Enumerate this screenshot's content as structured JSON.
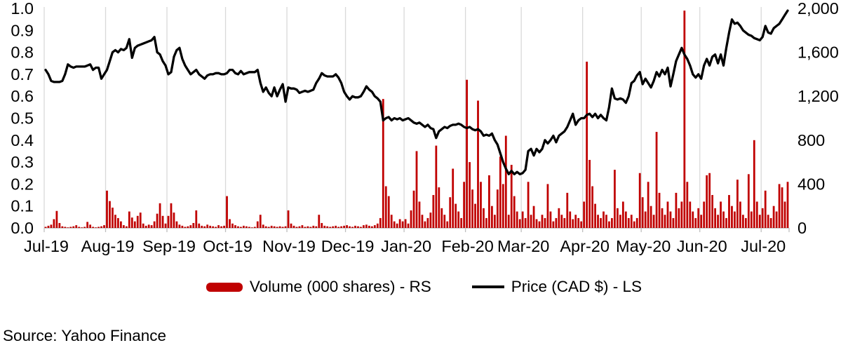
{
  "source_note": "Source: Yahoo Finance",
  "colors": {
    "bar": "#c00000",
    "line": "#000000",
    "grid": "#d9d9d9",
    "axis": "#bfbfbf",
    "text": "#000000",
    "background": "#ffffff"
  },
  "legend": {
    "volume_label": "Volume (000 shares) - RS",
    "price_label": "Price (CAD $) - LS"
  },
  "chart_data": {
    "type": "combo",
    "title": "",
    "grid": "vertical-monthly",
    "legend_position": "bottom",
    "left_axis": {
      "label": "Price (CAD $)",
      "min": 0.0,
      "max": 1.0,
      "step": 0.1,
      "tick_labels": [
        "0.0",
        "0.1",
        "0.2",
        "0.3",
        "0.4",
        "0.5",
        "0.6",
        "0.7",
        "0.8",
        "0.9",
        "1.0"
      ]
    },
    "right_axis": {
      "label": "Volume (000 shares)",
      "min": 0,
      "max": 2000,
      "step": 400,
      "tick_labels": [
        "0",
        "400",
        "800",
        "1,200",
        "1,600",
        "2,000"
      ]
    },
    "x_axis": {
      "total_points": 267,
      "ticks": [
        {
          "label": "Jul-19",
          "day": 0
        },
        {
          "label": "Aug-19",
          "day": 22
        },
        {
          "label": "Sep-19",
          "day": 44
        },
        {
          "label": "Oct-19",
          "day": 65
        },
        {
          "label": "Nov-19",
          "day": 87
        },
        {
          "label": "Dec-19",
          "day": 108
        },
        {
          "label": "Jan-20",
          "day": 129
        },
        {
          "label": "Feb-20",
          "day": 151
        },
        {
          "label": "Mar-20",
          "day": 171
        },
        {
          "label": "Apr-20",
          "day": 193
        },
        {
          "label": "May-20",
          "day": 214
        },
        {
          "label": "Jun-20",
          "day": 235
        },
        {
          "label": "Jul-20",
          "day": 257
        }
      ]
    },
    "series": [
      {
        "name": "Volume (000 shares) - RS",
        "chart_type": "bar",
        "axis": "right",
        "color": "#c00000",
        "values": [
          10,
          20,
          30,
          80,
          155,
          45,
          15,
          10,
          5,
          10,
          15,
          25,
          10,
          5,
          10,
          55,
          30,
          10,
          5,
          10,
          15,
          25,
          340,
          245,
          185,
          120,
          90,
          60,
          25,
          15,
          150,
          95,
          60,
          110,
          140,
          40,
          20,
          30,
          25,
          60,
          130,
          225,
          110,
          40,
          110,
          225,
          140,
          60,
          30,
          20,
          10,
          15,
          25,
          45,
          160,
          40,
          20,
          15,
          30,
          20,
          15,
          10,
          25,
          15,
          20,
          290,
          80,
          40,
          25,
          15,
          10,
          20,
          15,
          10,
          5,
          10,
          60,
          120,
          30,
          15,
          10,
          20,
          15,
          10,
          15,
          10,
          15,
          160,
          40,
          20,
          10,
          15,
          25,
          10,
          15,
          10,
          20,
          15,
          120,
          45,
          20,
          15,
          10,
          15,
          20,
          10,
          15,
          20,
          25,
          15,
          10,
          20,
          15,
          10,
          25,
          30,
          20,
          15,
          25,
          40,
          90,
          1175,
          380,
          290,
          120,
          60,
          40,
          80,
          60,
          80,
          40,
          160,
          340,
          700,
          240,
          120,
          60,
          90,
          140,
          300,
          750,
          370,
          180,
          120,
          60,
          280,
          540,
          220,
          150,
          90,
          420,
          1350,
          600,
          350,
          220,
          1160,
          420,
          180,
          90,
          480,
          200,
          120,
          350,
          650,
          400,
          840,
          120,
          575,
          290,
          150,
          80,
          150,
          90,
          420,
          120,
          200,
          80,
          60,
          120,
          90,
          400,
          150,
          60,
          90,
          180,
          120,
          90,
          320,
          150,
          80,
          120,
          90,
          60,
          240,
          1515,
          620,
          380,
          220,
          120,
          90,
          150,
          120,
          60,
          90,
          530,
          180,
          120,
          240,
          150,
          90,
          120,
          60,
          90,
          500,
          280,
          150,
          420,
          200,
          120,
          875,
          320,
          180,
          120,
          240,
          150,
          90,
          320,
          180,
          240,
          1980,
          420,
          240,
          150,
          90,
          180,
          120,
          240,
          480,
          500,
          300,
          180,
          120,
          240,
          150,
          90,
          300,
          200,
          150,
          440,
          240,
          120,
          90,
          490,
          150,
          800,
          240,
          120,
          180,
          340,
          120,
          90,
          200,
          150,
          400,
          370,
          240,
          420
        ]
      },
      {
        "name": "Price (CAD $) - LS",
        "chart_type": "line",
        "axis": "left",
        "color": "#000000",
        "values": [
          0.72,
          0.7,
          0.67,
          0.665,
          0.665,
          0.665,
          0.67,
          0.7,
          0.745,
          0.735,
          0.73,
          0.735,
          0.735,
          0.735,
          0.735,
          0.74,
          0.745,
          0.72,
          0.73,
          0.73,
          0.68,
          0.7,
          0.72,
          0.76,
          0.8,
          0.81,
          0.8,
          0.815,
          0.81,
          0.82,
          0.86,
          0.775,
          0.82,
          0.83,
          0.835,
          0.84,
          0.845,
          0.85,
          0.855,
          0.87,
          0.8,
          0.79,
          0.76,
          0.74,
          0.7,
          0.71,
          0.78,
          0.81,
          0.82,
          0.77,
          0.74,
          0.72,
          0.7,
          0.71,
          0.72,
          0.7,
          0.69,
          0.68,
          0.695,
          0.7,
          0.7,
          0.705,
          0.705,
          0.7,
          0.7,
          0.705,
          0.72,
          0.72,
          0.705,
          0.7,
          0.715,
          0.7,
          0.705,
          0.71,
          0.71,
          0.71,
          0.72,
          0.66,
          0.62,
          0.64,
          0.615,
          0.6,
          0.64,
          0.6,
          0.63,
          0.655,
          0.575,
          0.64,
          0.635,
          0.635,
          0.63,
          0.615,
          0.62,
          0.625,
          0.62,
          0.625,
          0.63,
          0.66,
          0.68,
          0.705,
          0.695,
          0.69,
          0.69,
          0.69,
          0.7,
          0.685,
          0.66,
          0.62,
          0.6,
          0.585,
          0.6,
          0.595,
          0.595,
          0.6,
          0.62,
          0.645,
          0.63,
          0.62,
          0.6,
          0.59,
          0.575,
          0.49,
          0.5,
          0.505,
          0.49,
          0.5,
          0.495,
          0.5,
          0.49,
          0.495,
          0.5,
          0.49,
          0.48,
          0.475,
          0.48,
          0.47,
          0.46,
          0.47,
          0.455,
          0.45,
          0.41,
          0.44,
          0.45,
          0.46,
          0.455,
          0.465,
          0.47,
          0.47,
          0.475,
          0.47,
          0.46,
          0.455,
          0.46,
          0.45,
          0.445,
          0.45,
          0.44,
          0.42,
          0.425,
          0.42,
          0.43,
          0.4,
          0.38,
          0.34,
          0.3,
          0.27,
          0.245,
          0.26,
          0.245,
          0.255,
          0.245,
          0.25,
          0.265,
          0.35,
          0.36,
          0.33,
          0.36,
          0.345,
          0.36,
          0.4,
          0.385,
          0.4,
          0.42,
          0.39,
          0.42,
          0.43,
          0.44,
          0.46,
          0.49,
          0.52,
          0.47,
          0.49,
          0.5,
          0.5,
          0.515,
          0.52,
          0.505,
          0.52,
          0.5,
          0.515,
          0.5,
          0.49,
          0.55,
          0.635,
          0.59,
          0.585,
          0.59,
          0.585,
          0.57,
          0.6,
          0.66,
          0.67,
          0.695,
          0.71,
          0.655,
          0.68,
          0.66,
          0.64,
          0.67,
          0.71,
          0.69,
          0.72,
          0.7,
          0.73,
          0.645,
          0.7,
          0.76,
          0.79,
          0.82,
          0.79,
          0.77,
          0.74,
          0.7,
          0.685,
          0.7,
          0.68,
          0.74,
          0.77,
          0.74,
          0.78,
          0.79,
          0.75,
          0.79,
          0.74,
          0.82,
          0.89,
          0.95,
          0.93,
          0.935,
          0.92,
          0.9,
          0.89,
          0.88,
          0.875,
          0.865,
          0.86,
          0.855,
          0.87,
          0.92,
          0.89,
          0.885,
          0.91,
          0.92,
          0.93,
          0.95,
          0.97,
          0.99
        ]
      }
    ]
  }
}
